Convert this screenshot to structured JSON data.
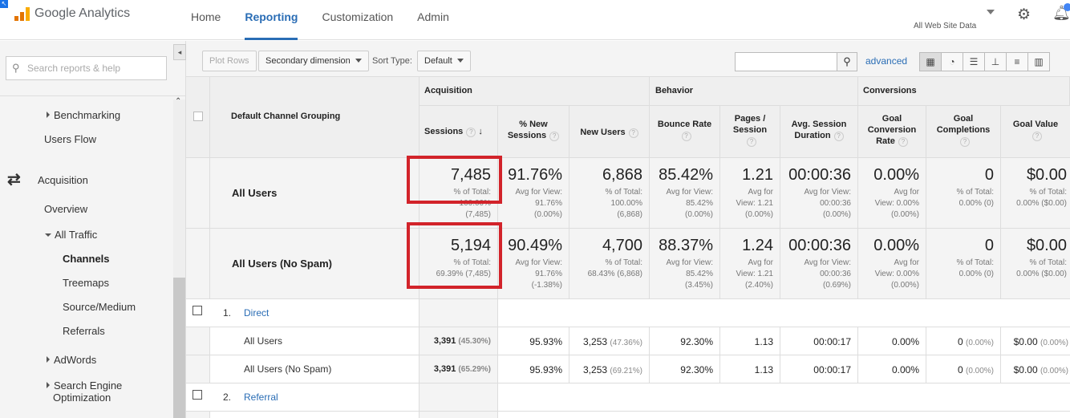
{
  "app": {
    "logo_text": "Google Analytics",
    "corner_glyph": "↖"
  },
  "nav": {
    "items": [
      "Home",
      "Reporting",
      "Customization",
      "Admin"
    ],
    "active": "Reporting"
  },
  "account": {
    "label": "All Web Site Data"
  },
  "sidebar": {
    "search_placeholder": "Search reports & help",
    "collapse_glyph": "◂",
    "items": {
      "benchmarking": "Benchmarking",
      "users_flow": "Users Flow",
      "acquisition": "Acquisition",
      "overview": "Overview",
      "all_traffic": "All Traffic",
      "channels": "Channels",
      "treemaps": "Treemaps",
      "source_medium": "Source/Medium",
      "referrals": "Referrals",
      "adwords": "AdWords",
      "seo_line1": "Search Engine",
      "seo_line2": "Optimization"
    }
  },
  "toolbar": {
    "plot_rows": "Plot Rows",
    "secondary_dimension": "Secondary dimension",
    "sort_type_label": "Sort Type:",
    "sort_type_value": "Default",
    "advanced": "advanced"
  },
  "table": {
    "dimension_header": "Default Channel Grouping",
    "groups": {
      "acquisition": "Acquisition",
      "behavior": "Behavior",
      "conversions": "Conversions"
    },
    "columns": {
      "sessions": "Sessions",
      "new_sessions_1": "% New",
      "new_sessions_2": "Sessions",
      "new_users": "New Users",
      "bounce_rate": "Bounce Rate",
      "pages_1": "Pages /",
      "pages_2": "Session",
      "duration_1": "Avg. Session",
      "duration_2": "Duration",
      "gcr_1": "Goal",
      "gcr_2": "Conversion",
      "gcr_3": "Rate",
      "gcomp_1": "Goal",
      "gcomp_2": "Completions",
      "gvalue": "Goal Value"
    },
    "summary": [
      {
        "label": "All Users",
        "sessions": "7,485",
        "sessions_sub1": "% of Total:",
        "sessions_sub2": "100.00%",
        "sessions_sub3": "(7,485)",
        "new_sessions": "91.76%",
        "ns_sub1": "Avg for View:",
        "ns_sub2": "91.76%",
        "ns_sub3": "(0.00%)",
        "new_users": "6,868",
        "nu_sub1": "% of Total:",
        "nu_sub2": "100.00%",
        "nu_sub3": "(6,868)",
        "bounce_rate": "85.42%",
        "br_sub1": "Avg for View:",
        "br_sub2": "85.42%",
        "br_sub3": "(0.00%)",
        "pages": "1.21",
        "pg_sub1": "Avg for",
        "pg_sub2": "View: 1.21",
        "pg_sub3": "(0.00%)",
        "duration": "00:00:36",
        "du_sub1": "Avg for View:",
        "du_sub2": "00:00:36",
        "du_sub3": "(0.00%)",
        "gcr": "0.00%",
        "gcr_sub1": "Avg for",
        "gcr_sub2": "View: 0.00%",
        "gcr_sub3": "(0.00%)",
        "gcomp": "0",
        "gc_sub1": "% of Total:",
        "gc_sub2": "0.00% (0)",
        "gvalue": "$0.00",
        "gv_sub1": "% of Total:",
        "gv_sub2": "0.00% ($0.00)"
      },
      {
        "label": "All Users (No Spam)",
        "sessions": "5,194",
        "sessions_sub1": "% of Total:",
        "sessions_sub2": "69.39% (7,485)",
        "sessions_sub3": "",
        "new_sessions": "90.49%",
        "ns_sub1": "Avg for View:",
        "ns_sub2": "91.76%",
        "ns_sub3": "(-1.38%)",
        "new_users": "4,700",
        "nu_sub1": "% of Total:",
        "nu_sub2": "68.43% (6,868)",
        "nu_sub3": "",
        "bounce_rate": "88.37%",
        "br_sub1": "Avg for View:",
        "br_sub2": "85.42%",
        "br_sub3": "(3.45%)",
        "pages": "1.24",
        "pg_sub1": "Avg for",
        "pg_sub2": "View: 1.21",
        "pg_sub3": "(2.40%)",
        "duration": "00:00:36",
        "du_sub1": "Avg for View:",
        "du_sub2": "00:00:36",
        "du_sub3": "(0.69%)",
        "gcr": "0.00%",
        "gcr_sub1": "Avg for",
        "gcr_sub2": "View: 0.00%",
        "gcr_sub3": "(0.00%)",
        "gcomp": "0",
        "gc_sub1": "% of Total:",
        "gc_sub2": "0.00% (0)",
        "gvalue": "$0.00",
        "gv_sub1": "% of Total:",
        "gv_sub2": "0.00% ($0.00)"
      }
    ],
    "rows": [
      {
        "index": "1.",
        "channel": "Direct",
        "segments": [
          {
            "label": "All Users",
            "sessions": "3,391",
            "sessions_pct": "(45.30%)",
            "new_sessions": "95.93%",
            "new_users": "3,253",
            "new_users_pct": "(47.36%)",
            "bounce_rate": "92.30%",
            "pages": "1.13",
            "duration": "00:00:17",
            "gcr": "0.00%",
            "gcomp": "0",
            "gcomp_pct": "(0.00%)",
            "gvalue": "$0.00",
            "gvalue_pct": "(0.00%)"
          },
          {
            "label": "All Users (No Spam)",
            "sessions": "3,391",
            "sessions_pct": "(65.29%)",
            "new_sessions": "95.93%",
            "new_users": "3,253",
            "new_users_pct": "(69.21%)",
            "bounce_rate": "92.30%",
            "pages": "1.13",
            "duration": "00:00:17",
            "gcr": "0.00%",
            "gcomp": "0",
            "gcomp_pct": "(0.00%)",
            "gvalue": "$0.00",
            "gvalue_pct": "(0.00%)"
          }
        ]
      },
      {
        "index": "2.",
        "channel": "Referral"
      }
    ]
  }
}
